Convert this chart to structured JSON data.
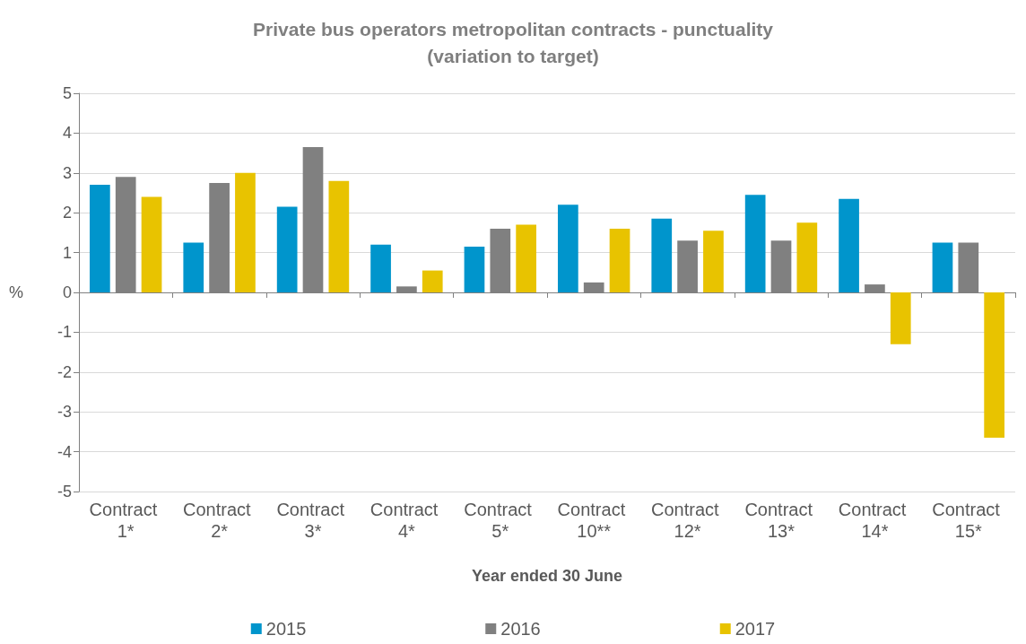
{
  "chart_data": {
    "type": "bar",
    "title": "Private bus operators metropolitan contracts - punctuality\n(variation to target)",
    "xlabel": "Year ended 30 June",
    "ylabel": "%",
    "categories": [
      "Contract 1*",
      "Contract 2*",
      "Contract 3*",
      "Contract 4*",
      "Contract 5*",
      "Contract 10**",
      "Contract 12*",
      "Contract 13*",
      "Contract 14*",
      "Contract 15*"
    ],
    "series": [
      {
        "name": "2015",
        "color": "#0095cc",
        "values": [
          2.7,
          1.25,
          2.15,
          1.2,
          1.15,
          2.2,
          1.85,
          2.45,
          2.35,
          1.25
        ]
      },
      {
        "name": "2016",
        "color": "#808080",
        "values": [
          2.9,
          2.75,
          3.65,
          0.15,
          1.6,
          0.25,
          1.3,
          1.3,
          0.2,
          1.25
        ]
      },
      {
        "name": "2017",
        "color": "#e8c300",
        "values": [
          2.4,
          3.0,
          2.8,
          0.55,
          1.7,
          1.6,
          1.55,
          1.75,
          -1.3,
          -3.65
        ]
      }
    ],
    "ylim": [
      -5,
      5
    ],
    "yticks": [
      -5,
      -4,
      -3,
      -2,
      -1,
      0,
      1,
      2,
      3,
      4,
      5
    ],
    "grid": "y",
    "legend": "bottom"
  }
}
